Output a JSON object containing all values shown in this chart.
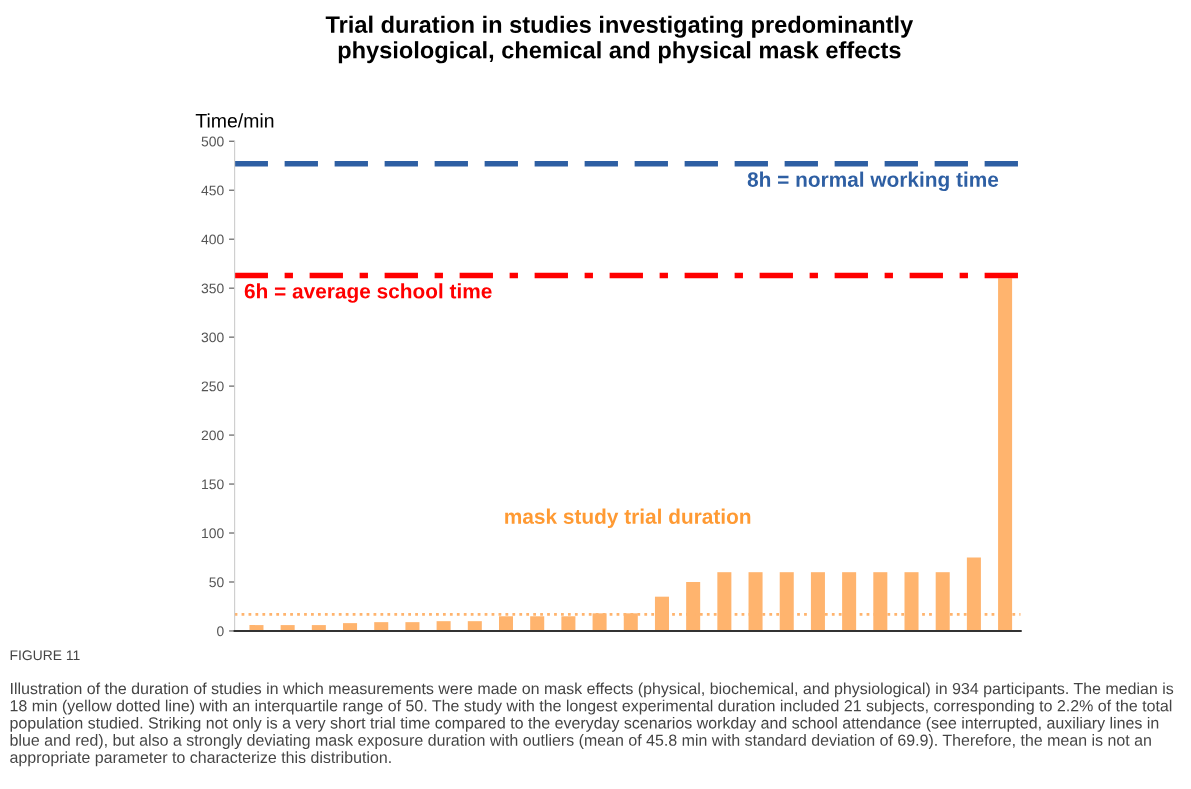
{
  "chart_data": {
    "type": "bar",
    "title": "Trial duration in studies investigating predominantly\nphysiological, chemical and physical mask effects",
    "ylabel": "Time/min",
    "categories": [
      null,
      null,
      null,
      null,
      null,
      null,
      null,
      null,
      null,
      null,
      null,
      null,
      null,
      null,
      null,
      null,
      null,
      null,
      null,
      null,
      null,
      null,
      null,
      null,
      null
    ],
    "series": [
      {
        "name": "mask study trial duration",
        "color": "#ffb46e",
        "values": [
          6,
          6,
          6,
          8,
          9,
          9,
          10,
          10,
          15,
          15,
          15,
          18,
          18,
          35,
          50,
          60,
          60,
          60,
          60,
          60,
          60,
          60,
          60,
          75,
          360
        ]
      }
    ],
    "ylim": [
      0,
      500
    ],
    "yticks": [
      0,
      50,
      100,
      150,
      200,
      250,
      300,
      350,
      400,
      450,
      500
    ],
    "grid": false,
    "ref_lines": [
      {
        "axis": "y",
        "value": 477,
        "label": "8h = normal working time",
        "color": "#2e5fa3",
        "line_style": "dashed"
      },
      {
        "axis": "y",
        "value": 363,
        "label": "6h = average school time",
        "color": "#ff0000",
        "line_style": "dashdot"
      },
      {
        "axis": "y",
        "value": 17,
        "label": null,
        "color": "#ffb46e",
        "line_style": "dotted"
      }
    ],
    "annotations": [
      "FIGURE 11",
      "Illustration of the duration of studies in which measurements were made on mask effects (physical, biochemical, and physiological) in 934 participants. The median is 18 min (yellow dotted line) with an interquartile range of 50. The study with the longest experimental duration included 21 subjects, corresponding to 2.2% of the total population studied. Striking not only is a very short trial time compared to the everyday scenarios workday and school attendance (see interrupted, auxiliary lines in blue and red), but also a strongly deviating mask exposure duration with outliers (mean of 45.8 min with standard deviation of 69.9). Therefore, the mean is not an appropriate parameter to characterize this distribution."
    ]
  }
}
